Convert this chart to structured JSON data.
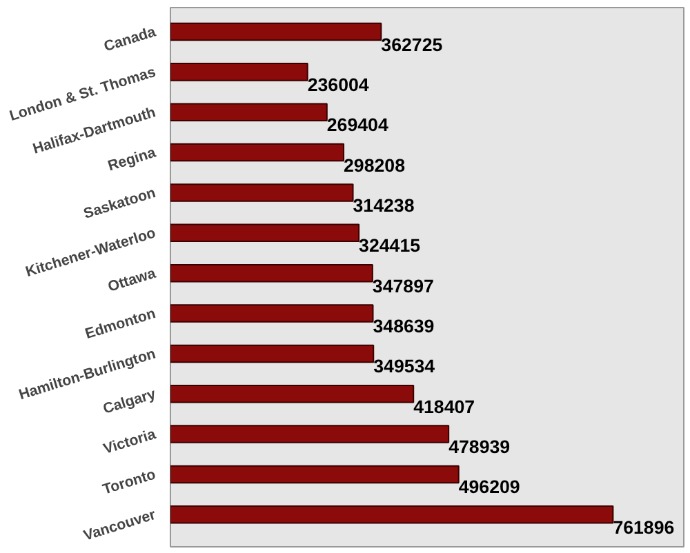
{
  "chart_data": {
    "type": "bar",
    "orientation": "horizontal",
    "categories": [
      "Canada",
      "London & St. Thomas",
      "Halifax-Dartmouth",
      "Regina",
      "Saskatoon",
      "Kitchener-Waterloo",
      "Ottawa",
      "Edmonton",
      "Hamilton-Burlington",
      "Calgary",
      "Victoria",
      "Toronto",
      "Vancouver"
    ],
    "values": [
      362725,
      236004,
      269404,
      298208,
      314238,
      324415,
      347897,
      348639,
      349534,
      418407,
      478939,
      496209,
      761896
    ],
    "color": "#8b0a0a",
    "data_labels": true,
    "grid": false
  }
}
